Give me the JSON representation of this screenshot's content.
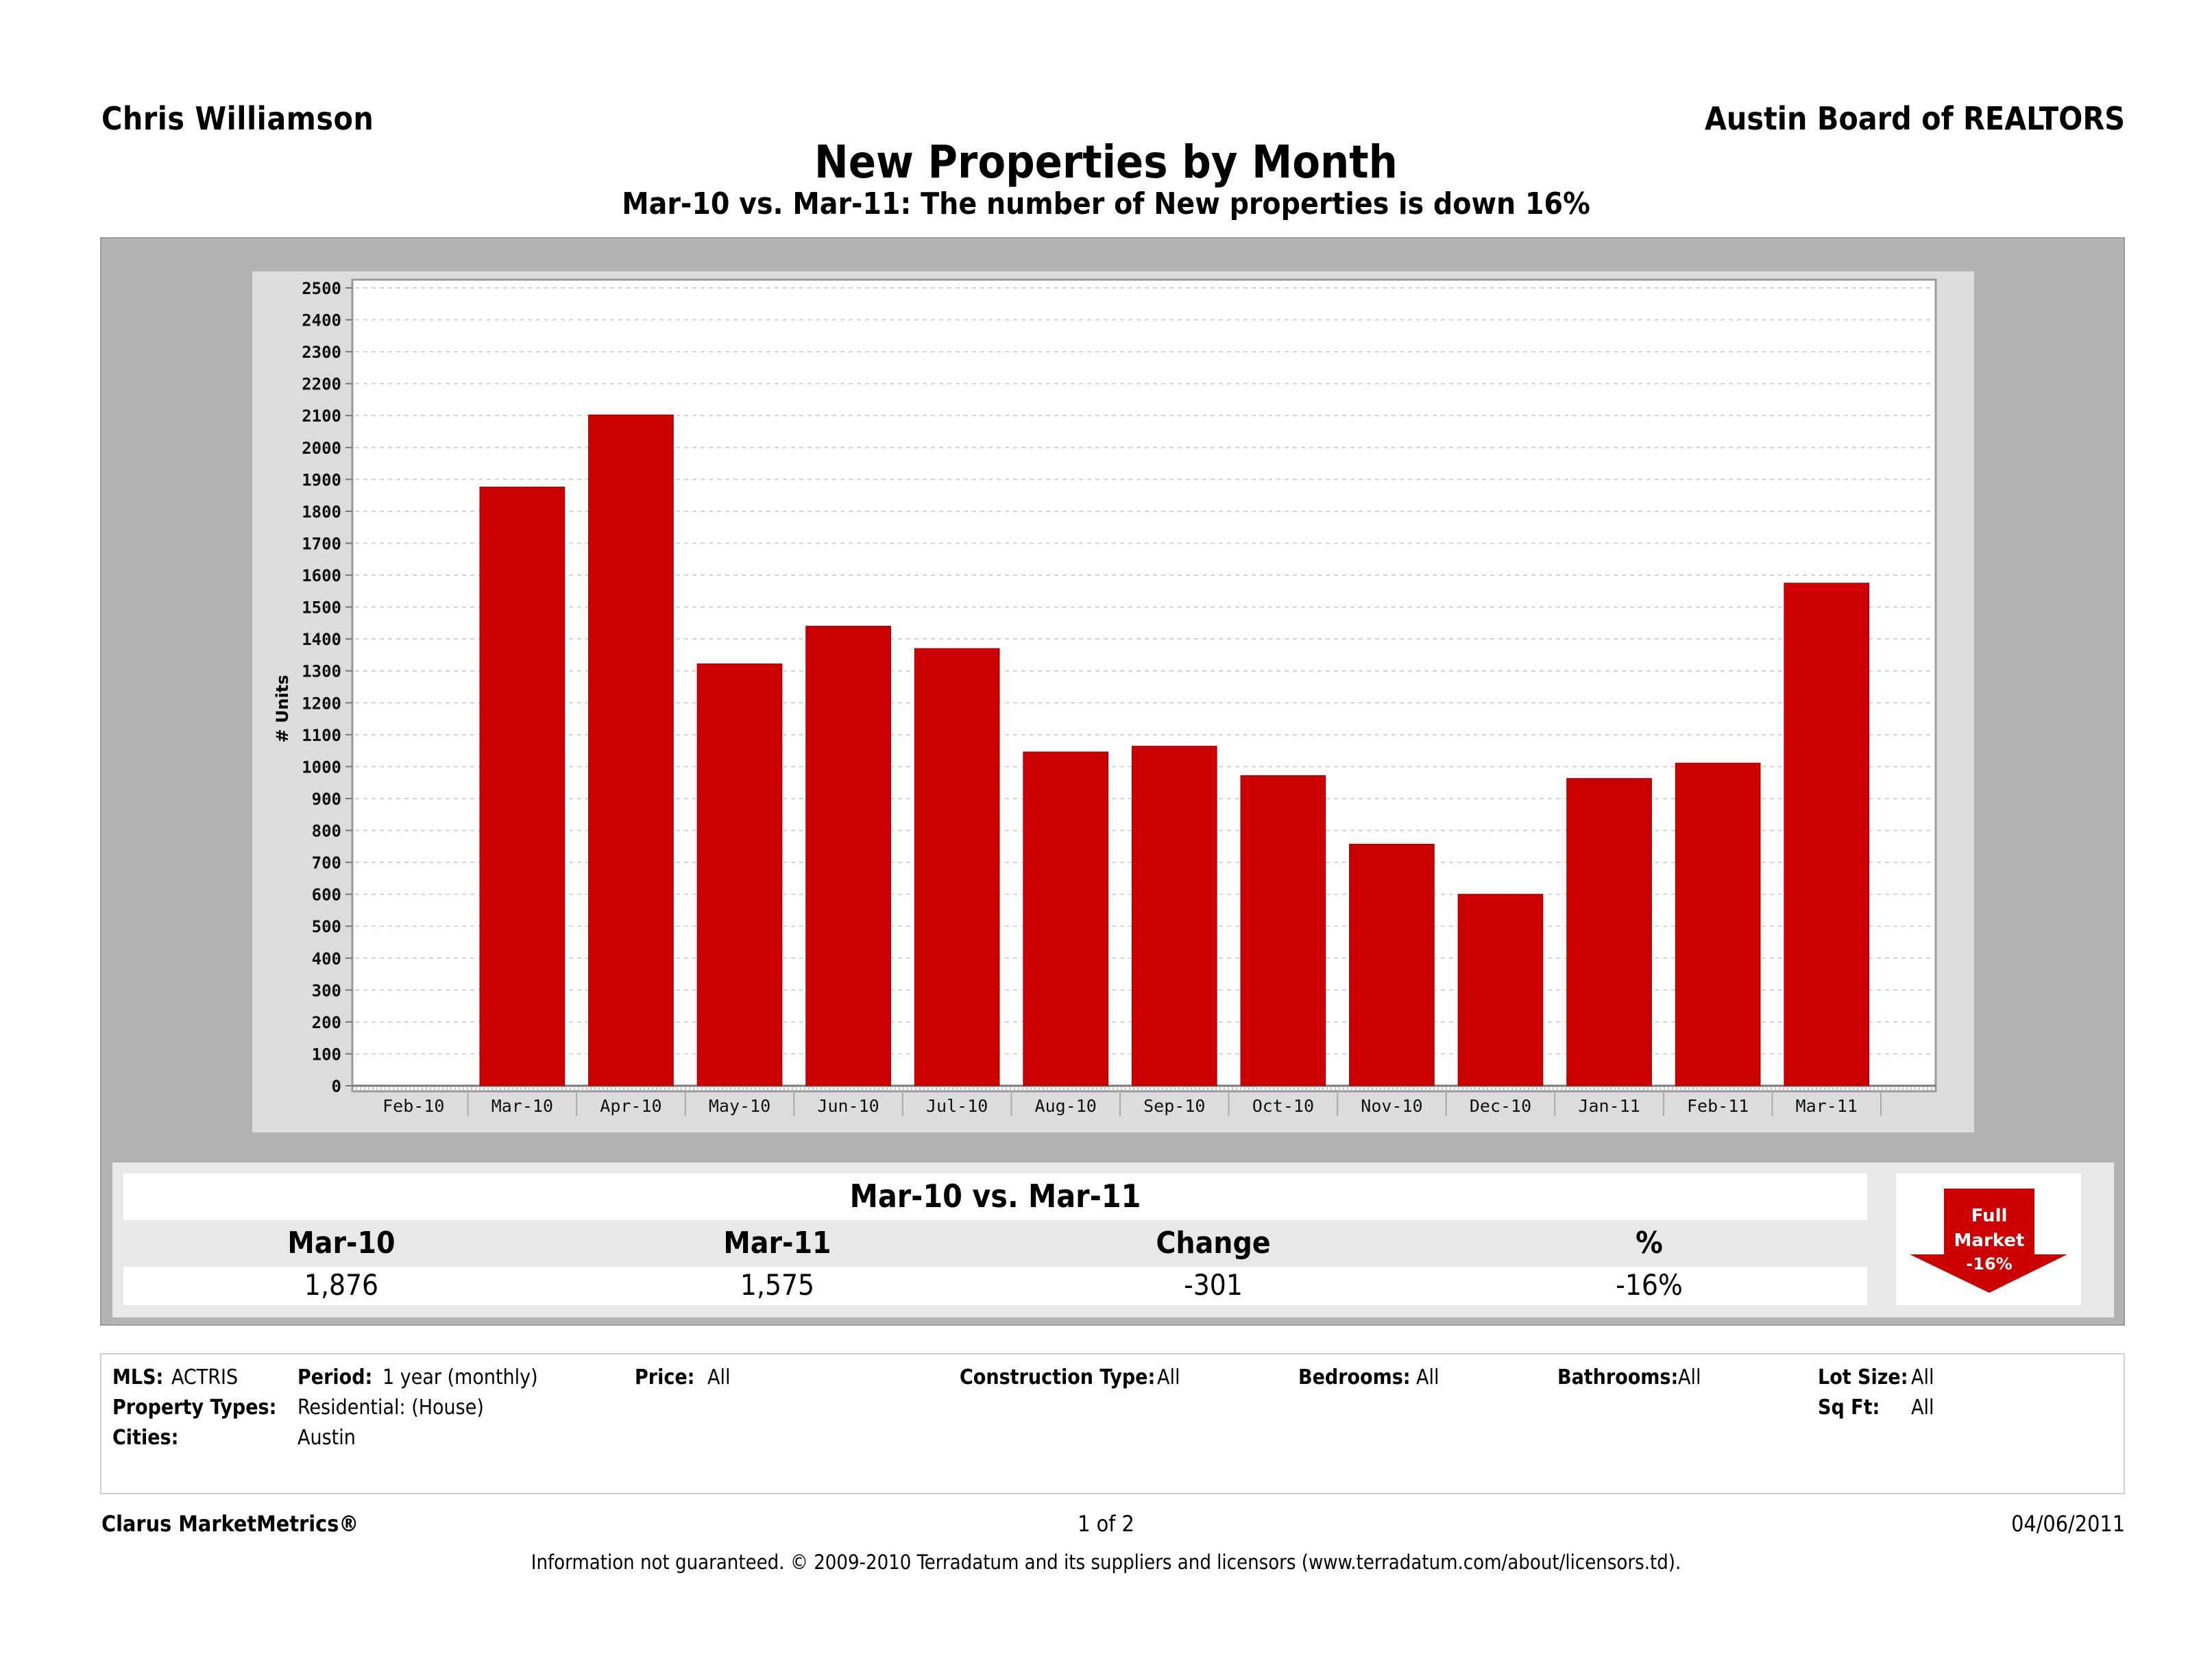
{
  "header": {
    "author": "Chris Williamson",
    "organization": "Austin Board of REALTORS",
    "title": "New Properties by Month",
    "subtitle": "Mar-10 vs. Mar-11: The number of New properties is down 16%"
  },
  "chart_data": {
    "type": "bar",
    "title": "New Properties by Month",
    "xlabel": "",
    "ylabel": "# Units",
    "ylim": [
      0,
      2500
    ],
    "ytick_step": 100,
    "yticks": [
      0,
      100,
      200,
      300,
      400,
      500,
      600,
      700,
      800,
      900,
      1000,
      1100,
      1200,
      1300,
      1400,
      1500,
      1600,
      1700,
      1800,
      1900,
      2000,
      2100,
      2200,
      2300,
      2400,
      2500
    ],
    "grid": true,
    "x_axis_labels": [
      "Feb-10",
      "Mar-10",
      "Apr-10",
      "May-10",
      "Jun-10",
      "Jul-10",
      "Aug-10",
      "Sep-10",
      "Oct-10",
      "Nov-10",
      "Dec-10",
      "Jan-11",
      "Feb-11",
      "Mar-11"
    ],
    "categories": [
      "Mar-10",
      "Apr-10",
      "May-10",
      "Jun-10",
      "Jul-10",
      "Aug-10",
      "Sep-10",
      "Oct-10",
      "Nov-10",
      "Dec-10",
      "Jan-11",
      "Feb-11",
      "Mar-11"
    ],
    "values": [
      1876,
      2102,
      1322,
      1440,
      1370,
      1046,
      1064,
      972,
      757,
      600,
      963,
      1011,
      1575
    ],
    "bar_color": "#cc0000"
  },
  "summary": {
    "title": "Mar-10 vs. Mar-11",
    "headers": [
      "Mar-10",
      "Mar-11",
      "Change",
      "%"
    ],
    "values": [
      "1,876",
      "1,575",
      "-301",
      "-16%"
    ],
    "badge": {
      "line1": "Full",
      "line2": "Market",
      "line3": "-16%",
      "direction": "down",
      "color": "#cc0000"
    }
  },
  "filters": {
    "mls_label": "MLS:",
    "mls_value": "ACTRIS",
    "period_label": "Period:",
    "period_value": "1 year (monthly)",
    "price_label": "Price:",
    "price_value": "All",
    "construction_label": "Construction Type:",
    "construction_value": "All",
    "bedrooms_label": "Bedrooms:",
    "bedrooms_value": "All",
    "bathrooms_label": "Bathrooms:",
    "bathrooms_value": "All",
    "lotsize_label": "Lot Size:",
    "lotsize_value": "All",
    "sqft_label": "Sq Ft:",
    "sqft_value": "All",
    "proptypes_label": "Property Types:",
    "proptypes_value": "Residential: (House)",
    "cities_label": "Cities:",
    "cities_value": "Austin"
  },
  "footer": {
    "brand": "Clarus MarketMetrics®",
    "page": "1 of 2",
    "date": "04/06/2011",
    "disclaimer": "Information not guaranteed.  © 2009-2010 Terradatum and its suppliers and licensors (www.terradatum.com/about/licensors.td)."
  }
}
